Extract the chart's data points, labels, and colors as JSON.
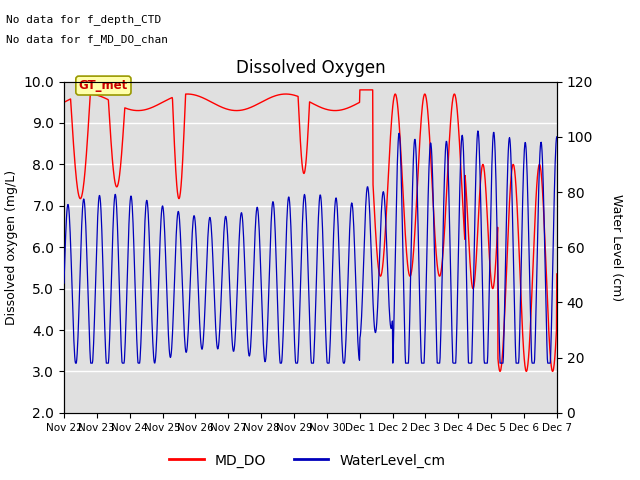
{
  "title": "Dissolved Oxygen",
  "ylabel_left": "Dissolved oxygen (mg/L)",
  "ylabel_right": "Water Level (cm)",
  "ylim_left": [
    2.0,
    10.0
  ],
  "ylim_right": [
    0,
    120
  ],
  "annotation1": "No data for f_depth_CTD",
  "annotation2": "No data for f_MD_DO_chan",
  "gt_label": "GT_met",
  "background_color": "#e0e0e0",
  "line_color_red": "#ff0000",
  "line_color_blue": "#0000bb",
  "legend_labels": [
    "MD_DO",
    "WaterLevel_cm"
  ],
  "xtick_labels": [
    "Nov 22",
    "Nov 23",
    "Nov 24",
    "Nov 25",
    "Nov 26",
    "Nov 27",
    "Nov 28",
    "Nov 29",
    "Nov 30",
    "Dec 1",
    "Dec 2",
    "Dec 3",
    "Dec 4",
    "Dec 5",
    "Dec 6",
    "Dec 7"
  ],
  "total_days": 15,
  "wl_period": 0.48,
  "wl_base": 47,
  "wl_amp_early": 28,
  "wl_amp_late": 45,
  "wl_min": 18,
  "wl_max": 118,
  "do_base_early": 9.5,
  "figsize": [
    6.4,
    4.8
  ],
  "dpi": 100
}
